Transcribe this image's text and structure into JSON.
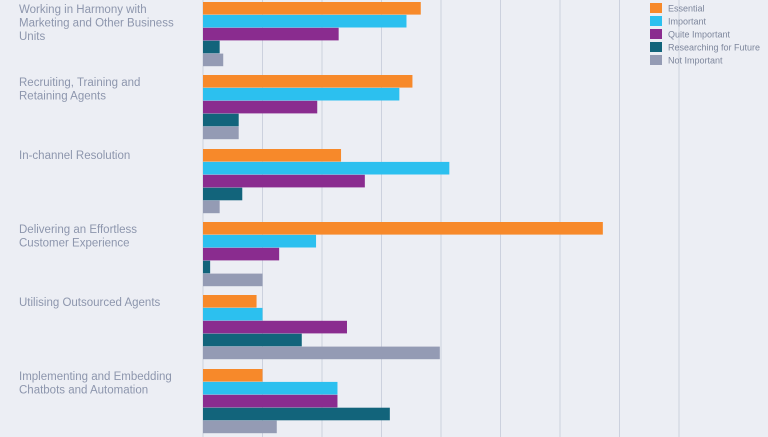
{
  "chart_data": {
    "type": "bar",
    "orientation": "horizontal",
    "categories": [
      [
        "Working in Harmony with",
        "Marketing and Other Business",
        "Units"
      ],
      [
        "Recruiting, Training and",
        "Retaining Agents"
      ],
      [
        "In-channel Resolution"
      ],
      [
        "Delivering an Effortless",
        "Customer Experience"
      ],
      [
        "Utilising Outsourced Agents"
      ],
      [
        "Implementing and Embedding",
        "Chatbots and Automation"
      ]
    ],
    "series": [
      {
        "name": "Essential",
        "color": "#f7892a",
        "values": [
          18.3,
          17.6,
          11.6,
          33.6,
          4.5,
          5.0
        ]
      },
      {
        "name": "Important",
        "color": "#2cc0ef",
        "values": [
          17.1,
          16.5,
          20.7,
          9.5,
          5.0,
          11.3
        ]
      },
      {
        "name": "Quite Important",
        "color": "#8a2c8f",
        "values": [
          11.4,
          9.6,
          13.6,
          6.4,
          12.1,
          11.3
        ]
      },
      {
        "name": "Researching for Future",
        "color": "#12647b",
        "values": [
          1.4,
          3.0,
          3.3,
          0.6,
          8.3,
          15.7
        ]
      },
      {
        "name": "Not Important",
        "color": "#949bb4",
        "values": [
          1.7,
          3.0,
          1.4,
          5.0,
          19.9,
          6.2
        ]
      }
    ],
    "xlim": [
      0,
      40
    ],
    "grid": true,
    "legend": "top-right"
  }
}
